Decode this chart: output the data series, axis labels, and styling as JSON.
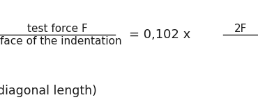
{
  "bg_color": "#ffffff",
  "text_color": "#1a1a1a",
  "figsize": [
    3.7,
    1.57
  ],
  "dpi": 100,
  "fraction_numerator": "test force F",
  "fraction_denominator": "face of the indentation",
  "rhs_middle": "= 0,102 x",
  "rhs_numerator": "2F",
  "bottom_text": "diagonal length)",
  "font_size_main": 11.0,
  "font_size_bottom": 12.5,
  "font_family": "serif"
}
